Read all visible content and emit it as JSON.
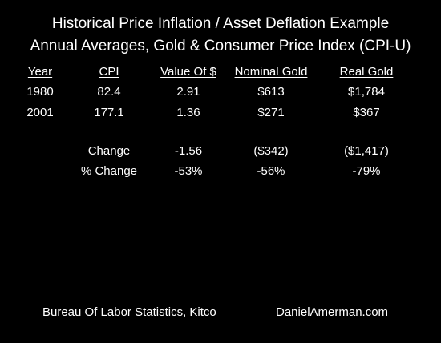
{
  "chart_data": {
    "type": "table",
    "title": "Historical Price Inflation / Asset Deflation Example",
    "subtitle": "Annual Averages, Gold & Consumer Price Index (CPI-U)",
    "columns": [
      "Year",
      "CPI",
      "Value Of $",
      "Nominal Gold",
      "Real Gold"
    ],
    "rows": [
      [
        "1980",
        "82.4",
        "2.91",
        "$613",
        "$1,784"
      ],
      [
        "2001",
        "177.1",
        "1.36",
        "$271",
        "$367"
      ]
    ],
    "summary_rows": [
      [
        "Change",
        "-1.56",
        "($342)",
        "($1,417)"
      ],
      [
        "% Change",
        "-53%",
        "-56%",
        "-79%"
      ]
    ]
  },
  "footer": {
    "source": "Bureau Of Labor Statistics, Kitco",
    "site": "DanielAmerman.com"
  }
}
